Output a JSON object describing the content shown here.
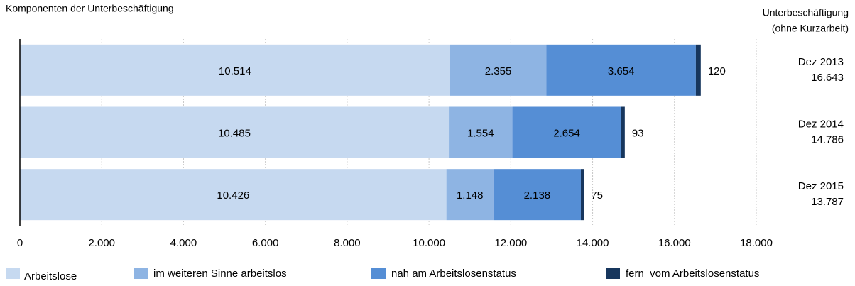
{
  "chart_data": {
    "type": "bar",
    "orientation": "horizontal",
    "stacked": true,
    "title": "Komponenten der Unterbeschäftigung",
    "categories": [
      "Dez 2013",
      "Dez 2014",
      "Dez 2015"
    ],
    "series": [
      {
        "name": "Arbeitslose",
        "color": "#c6d9f0",
        "label_color": "#000000",
        "values": [
          10514,
          10485,
          10426
        ],
        "value_labels": [
          "10.514",
          "10.485",
          "10.426"
        ]
      },
      {
        "name": "im weiteren Sinne arbeitslos",
        "color": "#8eb4e3",
        "label_color": "#ffffff",
        "values": [
          2355,
          1554,
          1148
        ],
        "value_labels": [
          "2.355",
          "1.554",
          "1.148"
        ]
      },
      {
        "name": "nah am Arbeitslosenstatus",
        "color": "#558ed5",
        "label_color": "#ffffff",
        "values": [
          3654,
          2654,
          2138
        ],
        "value_labels": [
          "3.654",
          "2.654",
          "2.138"
        ]
      },
      {
        "name": "fern  vom Arbeitslosenstatus",
        "color": "#17365d",
        "label_color": "#000000",
        "label_outside": true,
        "values": [
          120,
          93,
          75
        ]
      }
    ],
    "totals": {
      "title": [
        "Unterbeschäftigung",
        "(ohne Kurzarbeit)"
      ],
      "values": [
        16643,
        14786,
        13787
      ],
      "value_labels": [
        "16.643",
        "14.786",
        "13.787"
      ]
    },
    "xlim": [
      0,
      18000
    ],
    "xticks": [
      0,
      {
        "value": 2000,
        "label": "2.000"
      },
      {
        "value": 4000,
        "label": "4.000"
      },
      {
        "value": 6000,
        "label": "6.000"
      },
      {
        "value": 8000,
        "label": "8.000"
      },
      {
        "value": 10000,
        "label": "10.000"
      },
      {
        "value": 12000,
        "label": "12.000"
      },
      {
        "value": 14000,
        "label": "14.000"
      },
      {
        "value": 16000,
        "label": "16.000"
      },
      {
        "value": 18000,
        "label": "18.000"
      }
    ],
    "grid": true,
    "legend": "bottom"
  }
}
